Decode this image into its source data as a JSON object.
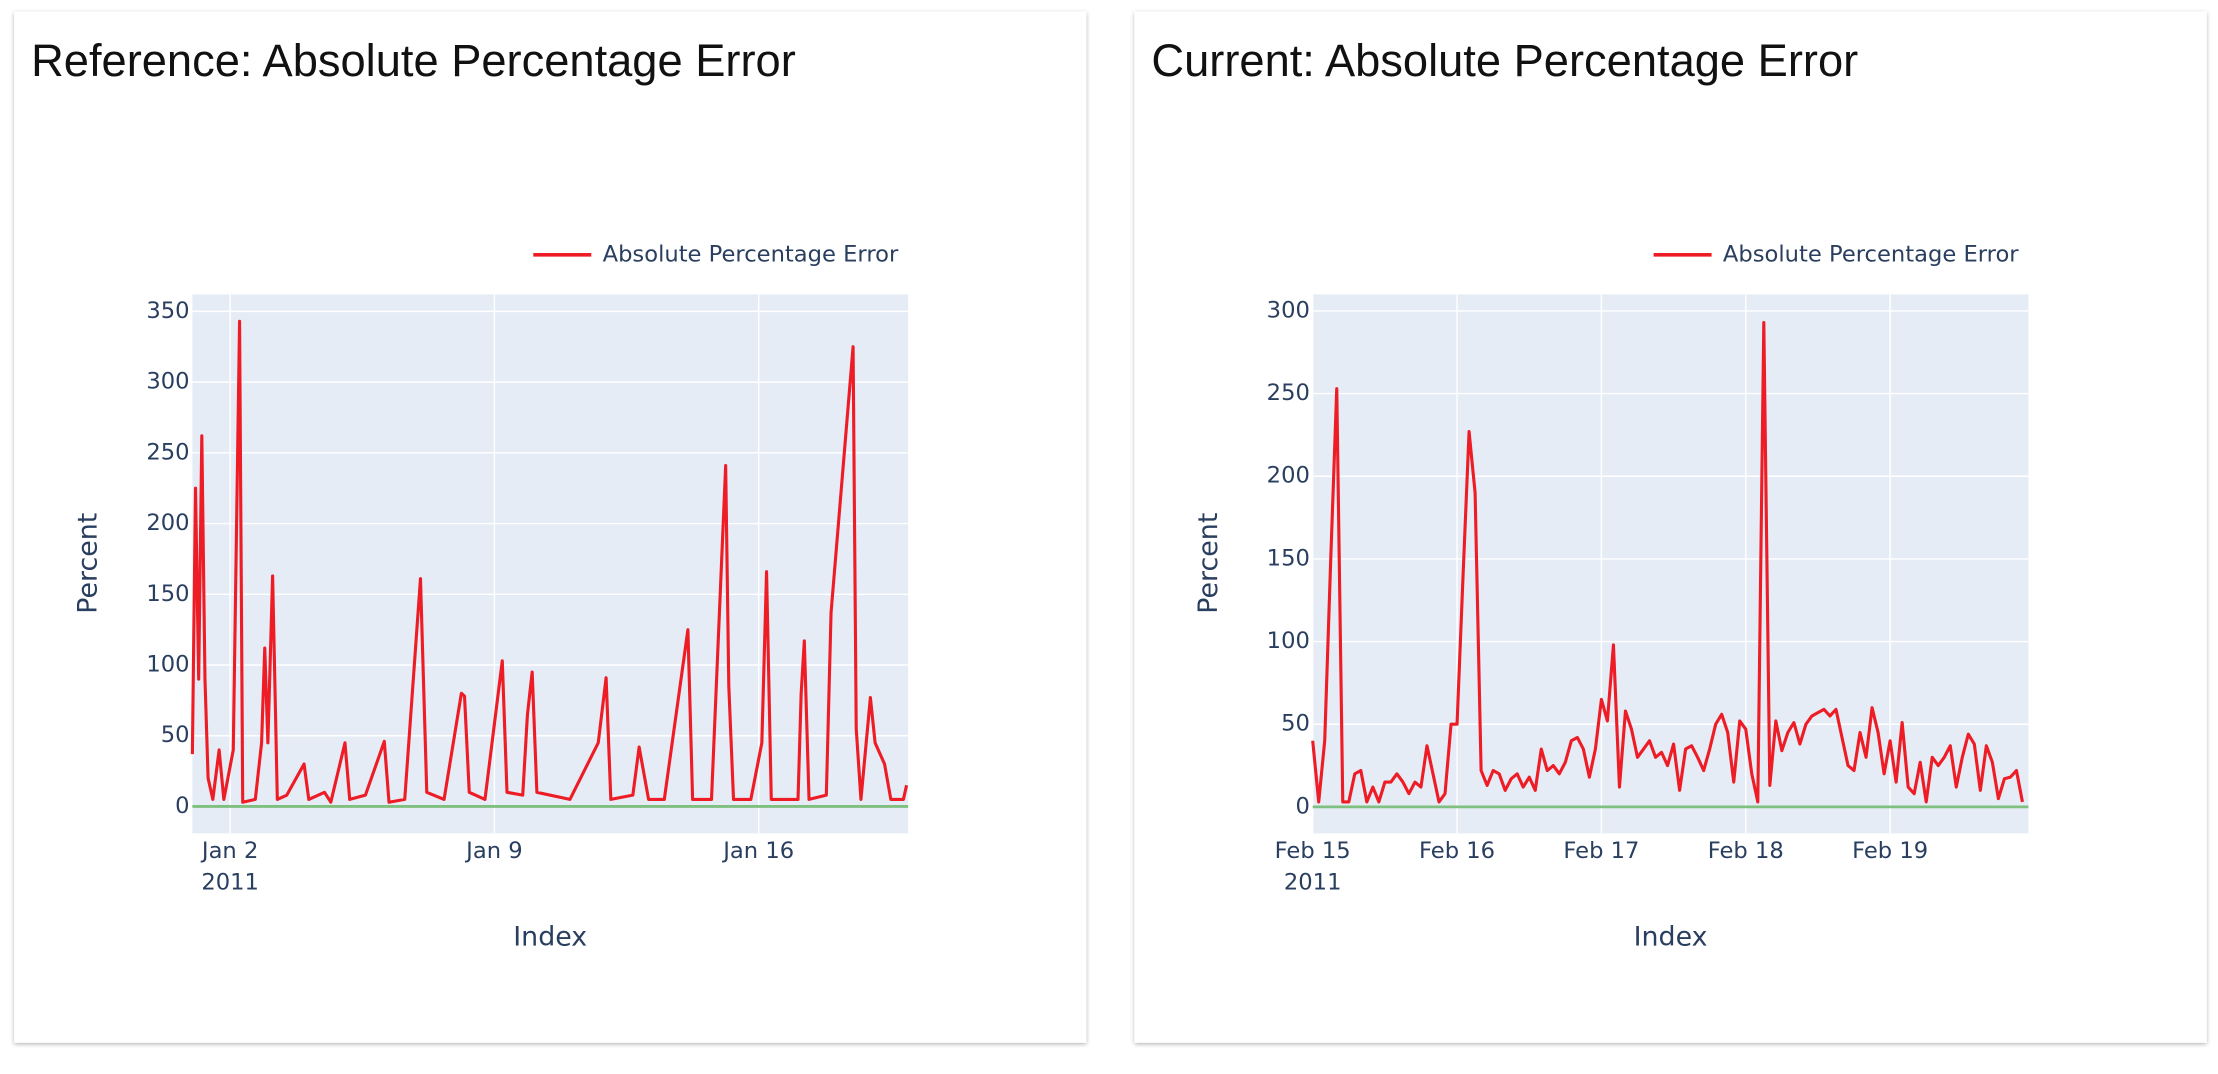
{
  "chart_data": [
    {
      "type": "line",
      "title": "Reference: Absolute Percentage Error",
      "y_label": "Percent",
      "x_label": "Index",
      "x": [
        "2011-01-01T00:00",
        "2011-01-01T02:00",
        "2011-01-01T04:00",
        "2011-01-01T06:00",
        "2011-01-01T08:00",
        "2011-01-01T10:00",
        "2011-01-01T13:00",
        "2011-01-01T17:00",
        "2011-01-01T20:00",
        "2011-01-02T02:00",
        "2011-01-02T06:00",
        "2011-01-02T08:00",
        "2011-01-02T16:00",
        "2011-01-02T20:00",
        "2011-01-02T22:00",
        "2011-01-03T00:00",
        "2011-01-03T03:00",
        "2011-01-03T06:00",
        "2011-01-03T12:00",
        "2011-01-03T23:00",
        "2011-01-04T02:00",
        "2011-01-04T12:00",
        "2011-01-04T16:00",
        "2011-01-05T01:00",
        "2011-01-05T04:00",
        "2011-01-05T14:00",
        "2011-01-06T02:00",
        "2011-01-06T05:00",
        "2011-01-06T15:00",
        "2011-01-07T01:00",
        "2011-01-07T05:00",
        "2011-01-07T16:00",
        "2011-01-08T03:00",
        "2011-01-08T05:00",
        "2011-01-08T08:00",
        "2011-01-08T18:00",
        "2011-01-09T05:00",
        "2011-01-09T08:00",
        "2011-01-09T18:00",
        "2011-01-09T21:00",
        "2011-01-10T00:00",
        "2011-01-10T03:00",
        "2011-01-11T00:00",
        "2011-01-11T18:00",
        "2011-01-11T23:00",
        "2011-01-12T02:00",
        "2011-01-12T16:00",
        "2011-01-12T20:00",
        "2011-01-13T02:00",
        "2011-01-13T12:00",
        "2011-01-14T03:00",
        "2011-01-14T06:00",
        "2011-01-14T18:00",
        "2011-01-15T03:00",
        "2011-01-15T05:00",
        "2011-01-15T08:00",
        "2011-01-15T19:00",
        "2011-01-16T02:00",
        "2011-01-16T05:00",
        "2011-01-16T08:00",
        "2011-01-17T01:00",
        "2011-01-17T03:00",
        "2011-01-17T05:00",
        "2011-01-17T08:00",
        "2011-01-17T19:00",
        "2011-01-17T22:00",
        "2011-01-18T12:00",
        "2011-01-18T14:00",
        "2011-01-18T17:00",
        "2011-01-18T23:00",
        "2011-01-19T02:00",
        "2011-01-19T08:00",
        "2011-01-19T12:00",
        "2011-01-19T20:00",
        "2011-01-19T22:00"
      ],
      "series": [
        {
          "name": "Absolute Percentage Error",
          "color": "#ee1c25",
          "values": [
            37,
            225,
            90,
            262,
            90,
            20,
            5,
            40,
            5,
            40,
            343,
            3,
            5,
            45,
            112,
            45,
            163,
            5,
            8,
            30,
            5,
            10,
            3,
            45,
            5,
            8,
            46,
            3,
            5,
            161,
            10,
            5,
            80,
            78,
            10,
            5,
            103,
            10,
            8,
            65,
            95,
            10,
            5,
            45,
            91,
            5,
            8,
            42,
            5,
            5,
            125,
            5,
            5,
            241,
            85,
            5,
            5,
            45,
            166,
            5,
            5,
            80,
            117,
            5,
            8,
            137,
            325,
            55,
            5,
            77,
            45,
            30,
            5,
            5,
            15
          ]
        }
      ],
      "xlim": [
        "2011-01-01T00:00",
        "2011-01-19T23:00"
      ],
      "ylim": [
        -19,
        362
      ],
      "yticks": [
        0,
        50,
        100,
        150,
        200,
        250,
        300,
        350
      ],
      "xticks": [
        {
          "value": "2011-01-02T00:00",
          "label": "Jan 2"
        },
        {
          "value": "2011-01-09T00:00",
          "label": "Jan 9"
        },
        {
          "value": "2011-01-16T00:00",
          "label": "Jan 16"
        }
      ],
      "x_year_label": "2011",
      "grid": true,
      "legend": "top-right",
      "zero_line": {
        "value": 0,
        "color": "#7fbf7f"
      }
    },
    {
      "type": "line",
      "title": "Current: Absolute Percentage Error",
      "y_label": "Percent",
      "x_label": "Index",
      "x": [
        "2011-02-15T00:00",
        "2011-02-15T01:00",
        "2011-02-15T02:00",
        "2011-02-15T03:00",
        "2011-02-15T04:00",
        "2011-02-15T05:00",
        "2011-02-15T06:00",
        "2011-02-15T07:00",
        "2011-02-15T08:00",
        "2011-02-15T09:00",
        "2011-02-15T10:00",
        "2011-02-15T11:00",
        "2011-02-15T12:00",
        "2011-02-15T13:00",
        "2011-02-15T14:00",
        "2011-02-15T15:00",
        "2011-02-15T16:00",
        "2011-02-15T17:00",
        "2011-02-15T18:00",
        "2011-02-15T19:00",
        "2011-02-15T20:00",
        "2011-02-15T21:00",
        "2011-02-15T22:00",
        "2011-02-15T23:00",
        "2011-02-16T00:00",
        "2011-02-16T01:00",
        "2011-02-16T02:00",
        "2011-02-16T03:00",
        "2011-02-16T04:00",
        "2011-02-16T05:00",
        "2011-02-16T06:00",
        "2011-02-16T07:00",
        "2011-02-16T08:00",
        "2011-02-16T09:00",
        "2011-02-16T10:00",
        "2011-02-16T11:00",
        "2011-02-16T12:00",
        "2011-02-16T13:00",
        "2011-02-16T14:00",
        "2011-02-16T15:00",
        "2011-02-16T16:00",
        "2011-02-16T17:00",
        "2011-02-16T18:00",
        "2011-02-16T19:00",
        "2011-02-16T20:00",
        "2011-02-16T21:00",
        "2011-02-16T22:00",
        "2011-02-16T23:00",
        "2011-02-17T00:00",
        "2011-02-17T01:00",
        "2011-02-17T02:00",
        "2011-02-17T03:00",
        "2011-02-17T04:00",
        "2011-02-17T05:00",
        "2011-02-17T06:00",
        "2011-02-17T07:00",
        "2011-02-17T08:00",
        "2011-02-17T09:00",
        "2011-02-17T10:00",
        "2011-02-17T11:00",
        "2011-02-17T12:00",
        "2011-02-17T13:00",
        "2011-02-17T14:00",
        "2011-02-17T15:00",
        "2011-02-17T16:00",
        "2011-02-17T17:00",
        "2011-02-17T18:00",
        "2011-02-17T19:00",
        "2011-02-17T20:00",
        "2011-02-17T21:00",
        "2011-02-17T22:00",
        "2011-02-17T23:00",
        "2011-02-18T00:00",
        "2011-02-18T01:00",
        "2011-02-18T02:00",
        "2011-02-18T03:00",
        "2011-02-18T04:00",
        "2011-02-18T05:00",
        "2011-02-18T06:00",
        "2011-02-18T07:00",
        "2011-02-18T08:00",
        "2011-02-18T09:00",
        "2011-02-18T10:00",
        "2011-02-18T11:00",
        "2011-02-18T12:00",
        "2011-02-18T13:00",
        "2011-02-18T14:00",
        "2011-02-18T15:00",
        "2011-02-18T16:00",
        "2011-02-18T17:00",
        "2011-02-18T18:00",
        "2011-02-18T19:00",
        "2011-02-18T20:00",
        "2011-02-18T21:00",
        "2011-02-18T22:00",
        "2011-02-18T23:00",
        "2011-02-19T00:00",
        "2011-02-19T01:00",
        "2011-02-19T02:00",
        "2011-02-19T03:00",
        "2011-02-19T04:00",
        "2011-02-19T05:00",
        "2011-02-19T06:00",
        "2011-02-19T07:00",
        "2011-02-19T08:00",
        "2011-02-19T09:00",
        "2011-02-19T10:00",
        "2011-02-19T11:00",
        "2011-02-19T12:00",
        "2011-02-19T13:00",
        "2011-02-19T14:00",
        "2011-02-19T15:00",
        "2011-02-19T16:00",
        "2011-02-19T17:00",
        "2011-02-19T18:00",
        "2011-02-19T19:00",
        "2011-02-19T20:00",
        "2011-02-19T21:00",
        "2011-02-19T22:00"
      ],
      "series": [
        {
          "name": "Absolute Percentage Error",
          "color": "#ee1c25",
          "values": [
            40,
            3,
            40,
            150,
            253,
            3,
            3,
            20,
            22,
            3,
            12,
            3,
            15,
            15,
            20,
            15,
            8,
            15,
            12,
            37,
            20,
            3,
            8,
            50,
            50,
            140,
            227,
            190,
            22,
            13,
            22,
            20,
            10,
            17,
            20,
            12,
            18,
            10,
            35,
            22,
            25,
            20,
            27,
            40,
            42,
            35,
            18,
            35,
            65,
            52,
            98,
            12,
            58,
            47,
            30,
            35,
            40,
            30,
            33,
            25,
            38,
            10,
            35,
            37,
            30,
            22,
            35,
            50,
            56,
            45,
            15,
            52,
            47,
            20,
            3,
            293,
            13,
            52,
            34,
            45,
            51,
            38,
            50,
            55,
            57,
            59,
            55,
            59,
            42,
            25,
            22,
            45,
            30,
            60,
            45,
            20,
            40,
            15,
            51,
            12,
            8,
            27,
            3,
            30,
            25,
            30,
            37,
            12,
            30,
            44,
            38,
            10,
            37,
            27,
            5,
            17,
            18,
            22,
            3
          ]
        }
      ],
      "xlim": [
        "2011-02-15T00:00",
        "2011-02-19T23:00"
      ],
      "ylim": [
        -16,
        310
      ],
      "yticks": [
        0,
        50,
        100,
        150,
        200,
        250,
        300
      ],
      "xticks": [
        {
          "value": "2011-02-15T00:00",
          "label": "Feb 15"
        },
        {
          "value": "2011-02-16T00:00",
          "label": "Feb 16"
        },
        {
          "value": "2011-02-17T00:00",
          "label": "Feb 17"
        },
        {
          "value": "2011-02-18T00:00",
          "label": "Feb 18"
        },
        {
          "value": "2011-02-19T00:00",
          "label": "Feb 19"
        }
      ],
      "x_year_label": "2011",
      "grid": true,
      "legend": "top-right",
      "zero_line": {
        "value": 0,
        "color": "#7fbf7f"
      }
    }
  ]
}
